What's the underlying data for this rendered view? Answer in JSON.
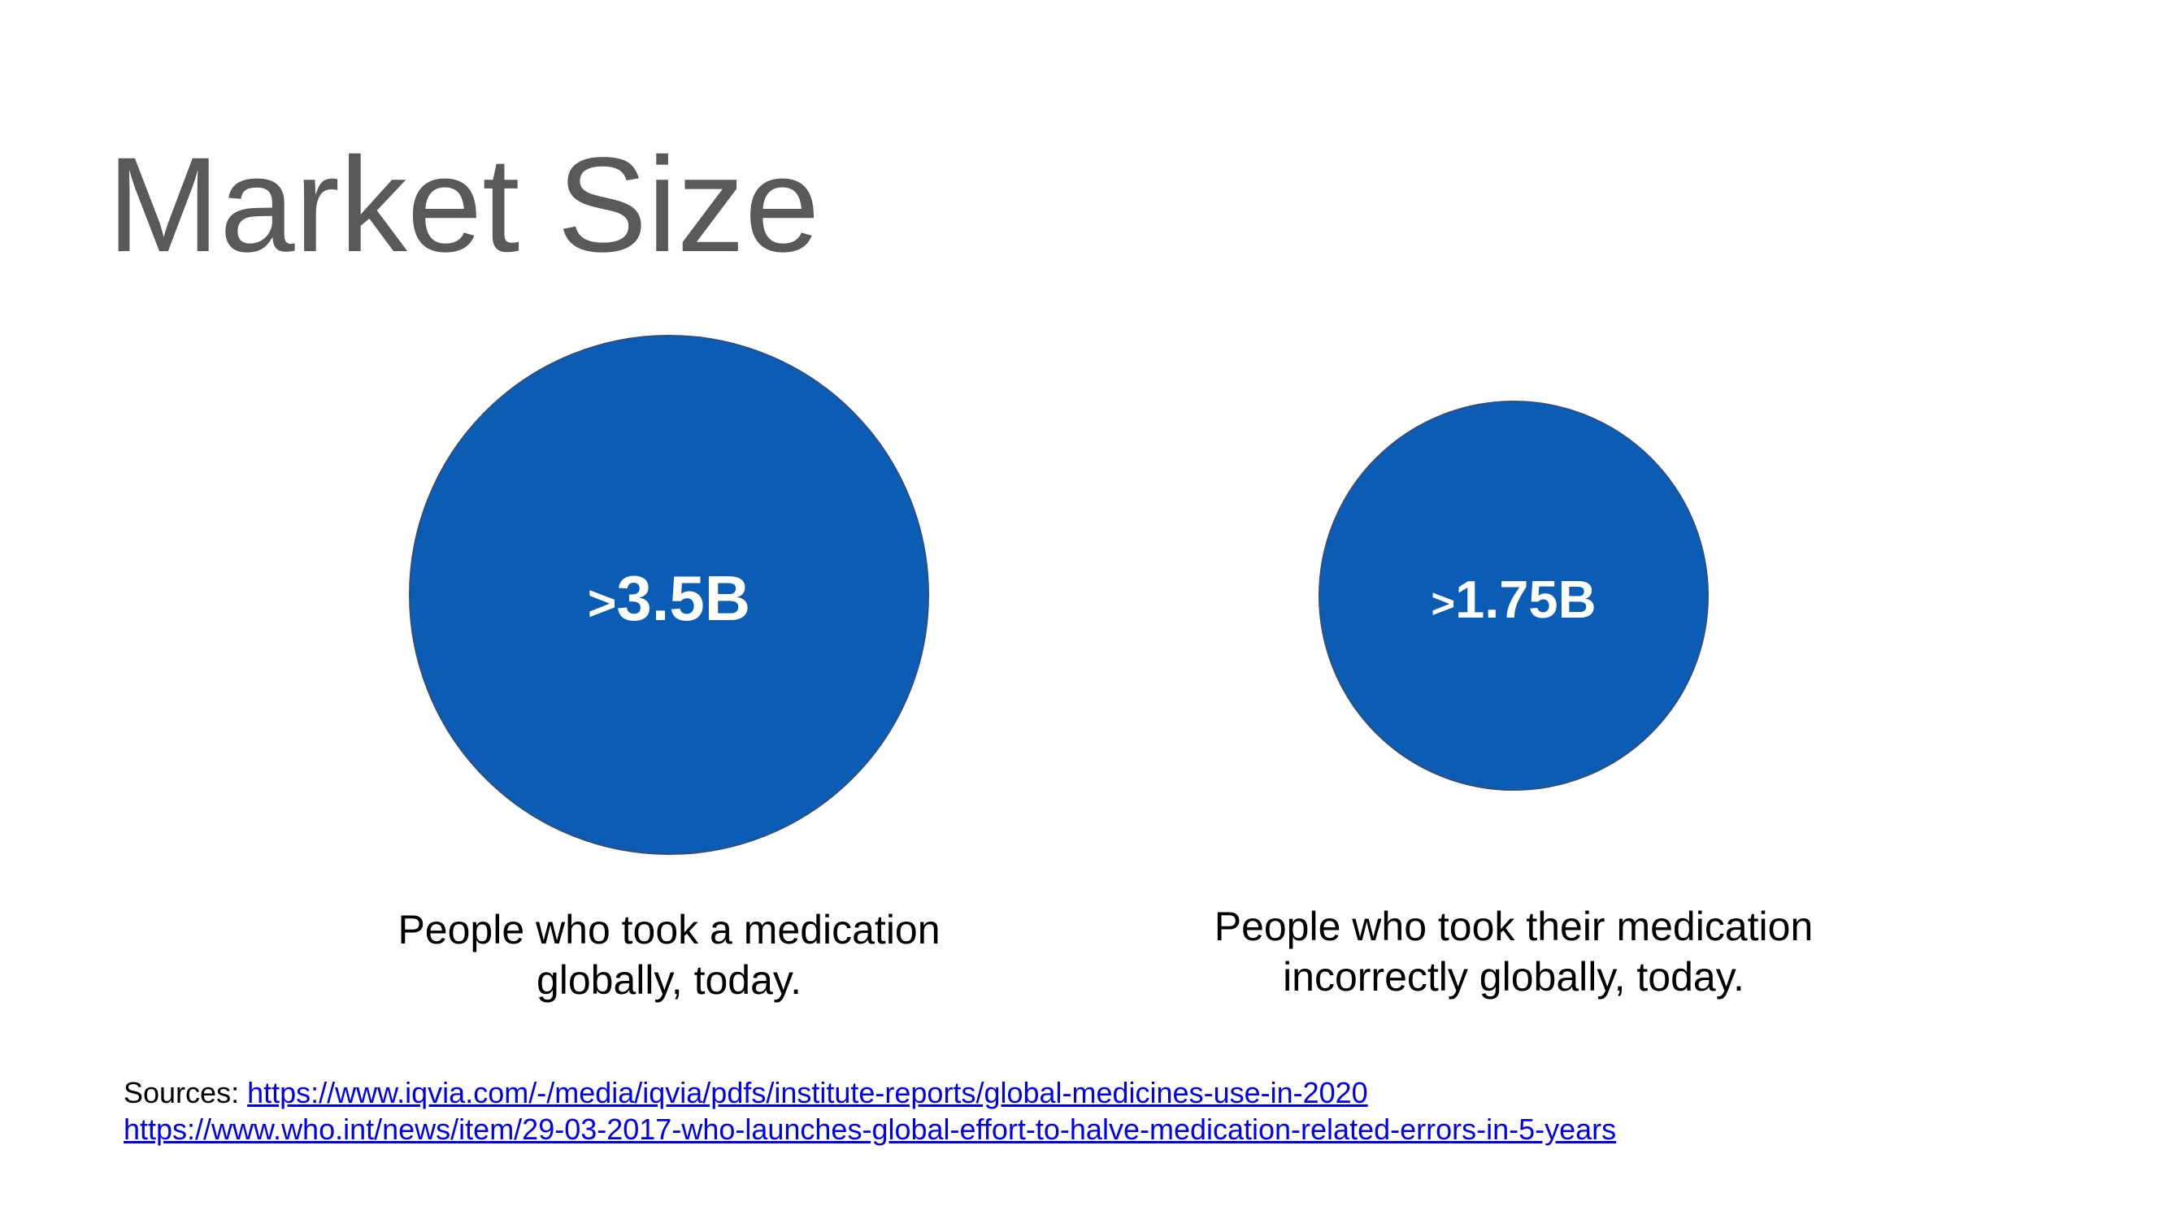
{
  "title": "Market Size",
  "stats": [
    {
      "value": "3.5B",
      "prefix": ">",
      "caption_line1": "People who took a medication",
      "caption_line2": "globally, today."
    },
    {
      "value": "1.75B",
      "prefix": ">",
      "caption_line1": "People who took their medication",
      "caption_line2": "incorrectly globally, today."
    }
  ],
  "sources": {
    "label": "Sources:",
    "links": [
      "https://www.iqvia.com/-/media/iqvia/pdfs/institute-reports/global-medicines-use-in-2020",
      "https://www.who.int/news/item/29-03-2017-who-launches-global-effort-to-halve-medication-related-errors-in-5-years"
    ]
  },
  "colors": {
    "circle_fill": "#0b5cb5",
    "title_text": "#595959",
    "link": "#0000ee"
  }
}
